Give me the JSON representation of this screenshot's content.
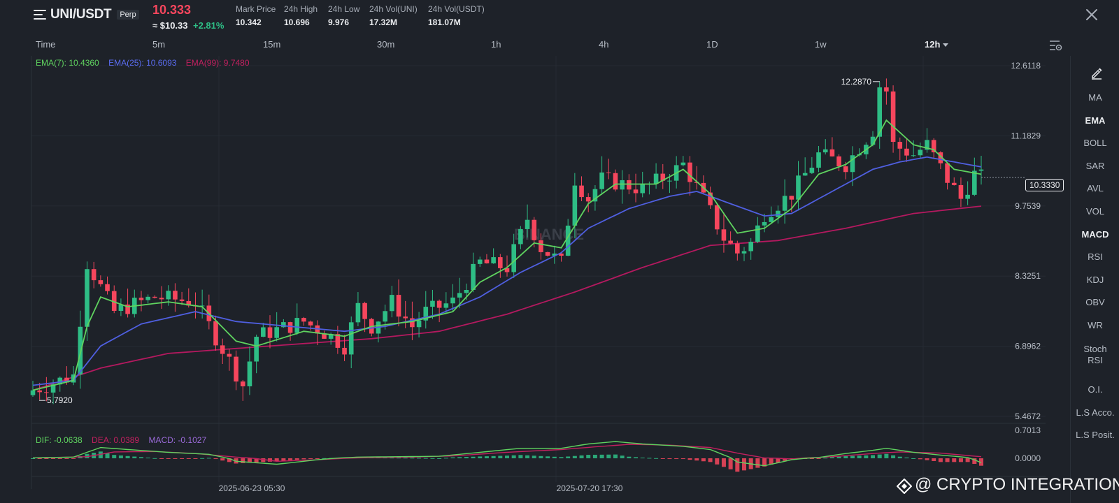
{
  "header": {
    "symbol": "UNI/USDT",
    "badge": "Perp",
    "last_price": "10.333",
    "usd_price": "≈ $10.33",
    "change": "+2.81%",
    "stats": [
      {
        "label": "Mark Price",
        "value": "10.342"
      },
      {
        "label": "24h High",
        "value": "10.696"
      },
      {
        "label": "24h Low",
        "value": "9.976"
      },
      {
        "label": "24h Vol(UNI)",
        "value": "17.32M"
      },
      {
        "label": "24h Vol(USDT)",
        "value": "181.07M"
      }
    ]
  },
  "intervals": [
    "Time",
    "5m",
    "15m",
    "30m",
    "1h",
    "4h",
    "1D",
    "1w",
    "12h"
  ],
  "active_interval": "12h",
  "ema_legend": {
    "ema7": "EMA(7): 10.4360",
    "ema25": "EMA(25): 10.6093",
    "ema99": "EMA(99): 9.7480"
  },
  "macd_legend": {
    "dif": "DIF: -0.0638",
    "dea": "DEA: 0.0389",
    "macd": "MACD: -0.1027"
  },
  "chart_data": {
    "type": "candlestick",
    "price_axis_labels": [
      "12.6118",
      "11.1829",
      "9.7539",
      "8.3251",
      "6.8962",
      "5.4672"
    ],
    "macd_axis_labels": [
      "0.7013",
      "0.0000"
    ],
    "time_labels": [
      "2025-06-23 05:30",
      "2025-07-20 17:30"
    ],
    "current_price": "10.3330",
    "high_marker": "12.2870",
    "low_marker": "5.7920",
    "ylim": [
      5.4672,
      12.6118
    ],
    "macd_ylim": [
      -0.15,
      0.7013
    ],
    "watermark": "BINANCE",
    "anchors": [
      [
        0,
        6.0
      ],
      [
        6,
        6.3
      ],
      [
        8,
        8.6
      ],
      [
        10,
        8.1
      ],
      [
        12,
        7.6
      ],
      [
        18,
        7.9
      ],
      [
        24,
        7.8
      ],
      [
        29,
        6.6
      ],
      [
        31,
        6.1
      ],
      [
        33,
        7.1
      ],
      [
        40,
        7.4
      ],
      [
        44,
        7.1
      ],
      [
        46,
        6.9
      ],
      [
        48,
        7.7
      ],
      [
        50,
        7.3
      ],
      [
        53,
        7.8
      ],
      [
        56,
        7.3
      ],
      [
        58,
        7.6
      ],
      [
        62,
        7.8
      ],
      [
        66,
        8.6
      ],
      [
        70,
        8.5
      ],
      [
        73,
        9.5
      ],
      [
        75,
        8.9
      ],
      [
        78,
        8.6
      ],
      [
        80,
        10.3
      ],
      [
        82,
        9.9
      ],
      [
        84,
        10.3
      ],
      [
        90,
        10.1
      ],
      [
        94,
        10.4
      ],
      [
        96,
        10.6
      ],
      [
        99,
        9.9
      ],
      [
        102,
        9.1
      ],
      [
        104,
        8.8
      ],
      [
        106,
        9.0
      ],
      [
        108,
        9.6
      ],
      [
        112,
        10.0
      ],
      [
        116,
        10.8
      ],
      [
        120,
        10.6
      ],
      [
        124,
        11.3
      ],
      [
        125,
        12.2
      ],
      [
        126,
        12.1
      ],
      [
        127,
        11.0
      ],
      [
        130,
        10.8
      ],
      [
        132,
        11.0
      ],
      [
        135,
        10.3
      ],
      [
        137,
        9.9
      ],
      [
        139,
        10.4
      ],
      [
        140,
        10.333
      ]
    ],
    "ema7": [
      [
        0,
        6.0
      ],
      [
        6,
        6.2
      ],
      [
        8,
        7.3
      ],
      [
        10,
        7.9
      ],
      [
        14,
        7.7
      ],
      [
        20,
        7.8
      ],
      [
        25,
        7.7
      ],
      [
        30,
        7.0
      ],
      [
        33,
        6.9
      ],
      [
        40,
        7.2
      ],
      [
        46,
        7.1
      ],
      [
        50,
        7.3
      ],
      [
        56,
        7.4
      ],
      [
        62,
        7.6
      ],
      [
        66,
        8.2
      ],
      [
        70,
        8.5
      ],
      [
        74,
        9.0
      ],
      [
        78,
        8.9
      ],
      [
        82,
        9.8
      ],
      [
        86,
        10.2
      ],
      [
        92,
        10.2
      ],
      [
        96,
        10.5
      ],
      [
        100,
        10.0
      ],
      [
        104,
        9.2
      ],
      [
        108,
        9.3
      ],
      [
        112,
        9.7
      ],
      [
        116,
        10.4
      ],
      [
        120,
        10.6
      ],
      [
        124,
        11.0
      ],
      [
        126,
        11.5
      ],
      [
        130,
        11.0
      ],
      [
        133,
        10.9
      ],
      [
        136,
        10.5
      ],
      [
        140,
        10.4
      ]
    ],
    "ema25": [
      [
        0,
        6.1
      ],
      [
        6,
        6.2
      ],
      [
        10,
        6.9
      ],
      [
        16,
        7.35
      ],
      [
        24,
        7.6
      ],
      [
        30,
        7.4
      ],
      [
        38,
        7.3
      ],
      [
        46,
        7.2
      ],
      [
        52,
        7.3
      ],
      [
        60,
        7.55
      ],
      [
        66,
        7.9
      ],
      [
        72,
        8.4
      ],
      [
        78,
        8.8
      ],
      [
        82,
        9.3
      ],
      [
        88,
        9.7
      ],
      [
        94,
        9.95
      ],
      [
        98,
        10.05
      ],
      [
        104,
        9.75
      ],
      [
        108,
        9.55
      ],
      [
        112,
        9.6
      ],
      [
        118,
        10.05
      ],
      [
        124,
        10.5
      ],
      [
        128,
        10.65
      ],
      [
        132,
        10.75
      ],
      [
        136,
        10.65
      ],
      [
        140,
        10.55
      ]
    ],
    "ema99": [
      [
        0,
        6.0
      ],
      [
        10,
        6.45
      ],
      [
        20,
        6.75
      ],
      [
        30,
        6.85
      ],
      [
        40,
        6.95
      ],
      [
        50,
        7.05
      ],
      [
        60,
        7.2
      ],
      [
        70,
        7.55
      ],
      [
        80,
        8.0
      ],
      [
        90,
        8.5
      ],
      [
        100,
        8.95
      ],
      [
        110,
        9.05
      ],
      [
        120,
        9.3
      ],
      [
        130,
        9.6
      ],
      [
        140,
        9.75
      ]
    ],
    "dif": [
      [
        0,
        0.01
      ],
      [
        6,
        0.03
      ],
      [
        10,
        0.27
      ],
      [
        14,
        0.22
      ],
      [
        20,
        0.15
      ],
      [
        26,
        0.1
      ],
      [
        30,
        -0.04
      ],
      [
        36,
        -0.08
      ],
      [
        42,
        -0.02
      ],
      [
        48,
        0.03
      ],
      [
        54,
        0.04
      ],
      [
        60,
        0.05
      ],
      [
        66,
        0.15
      ],
      [
        72,
        0.25
      ],
      [
        78,
        0.25
      ],
      [
        82,
        0.36
      ],
      [
        86,
        0.42
      ],
      [
        90,
        0.36
      ],
      [
        96,
        0.3
      ],
      [
        100,
        0.22
      ],
      [
        104,
        -0.05
      ],
      [
        108,
        -0.1
      ],
      [
        112,
        -0.02
      ],
      [
        116,
        0.02
      ],
      [
        120,
        0.12
      ],
      [
        124,
        0.2
      ],
      [
        126,
        0.25
      ],
      [
        130,
        0.15
      ],
      [
        134,
        0.08
      ],
      [
        138,
        0.02
      ],
      [
        140,
        -0.06
      ]
    ],
    "dea": [
      [
        0,
        0.01
      ],
      [
        8,
        0.04
      ],
      [
        12,
        0.16
      ],
      [
        18,
        0.17
      ],
      [
        24,
        0.12
      ],
      [
        30,
        0.03
      ],
      [
        36,
        -0.04
      ],
      [
        42,
        -0.02
      ],
      [
        48,
        0.01
      ],
      [
        56,
        0.03
      ],
      [
        62,
        0.06
      ],
      [
        70,
        0.15
      ],
      [
        78,
        0.22
      ],
      [
        84,
        0.3
      ],
      [
        88,
        0.35
      ],
      [
        94,
        0.33
      ],
      [
        100,
        0.27
      ],
      [
        104,
        0.13
      ],
      [
        108,
        0.01
      ],
      [
        112,
        -0.01
      ],
      [
        118,
        0.04
      ],
      [
        124,
        0.12
      ],
      [
        128,
        0.16
      ],
      [
        134,
        0.13
      ],
      [
        140,
        0.04
      ]
    ]
  },
  "indicators": [
    "MA",
    "EMA",
    "BOLL",
    "SAR",
    "AVL",
    "VOL",
    "MACD",
    "RSI",
    "KDJ",
    "OBV",
    "WR",
    "Stoch RSI",
    "O.I.",
    "L.S Acco.",
    "L.S Posit."
  ],
  "active_indicators": [
    "EMA",
    "MACD"
  ],
  "watermark": "@ CRYPTO INTEGRATION",
  "colors": {
    "up": "#2ebd85",
    "down": "#f6465d",
    "ema7": "#5fd35f",
    "ema25": "#4f5fe0",
    "ema99": "#b4195f",
    "bg": "#1e2229"
  },
  "icons": [
    "menu-icon",
    "close-icon",
    "caret-down-icon",
    "settings-icon",
    "pencil-icon",
    "binance-logo-icon"
  ]
}
